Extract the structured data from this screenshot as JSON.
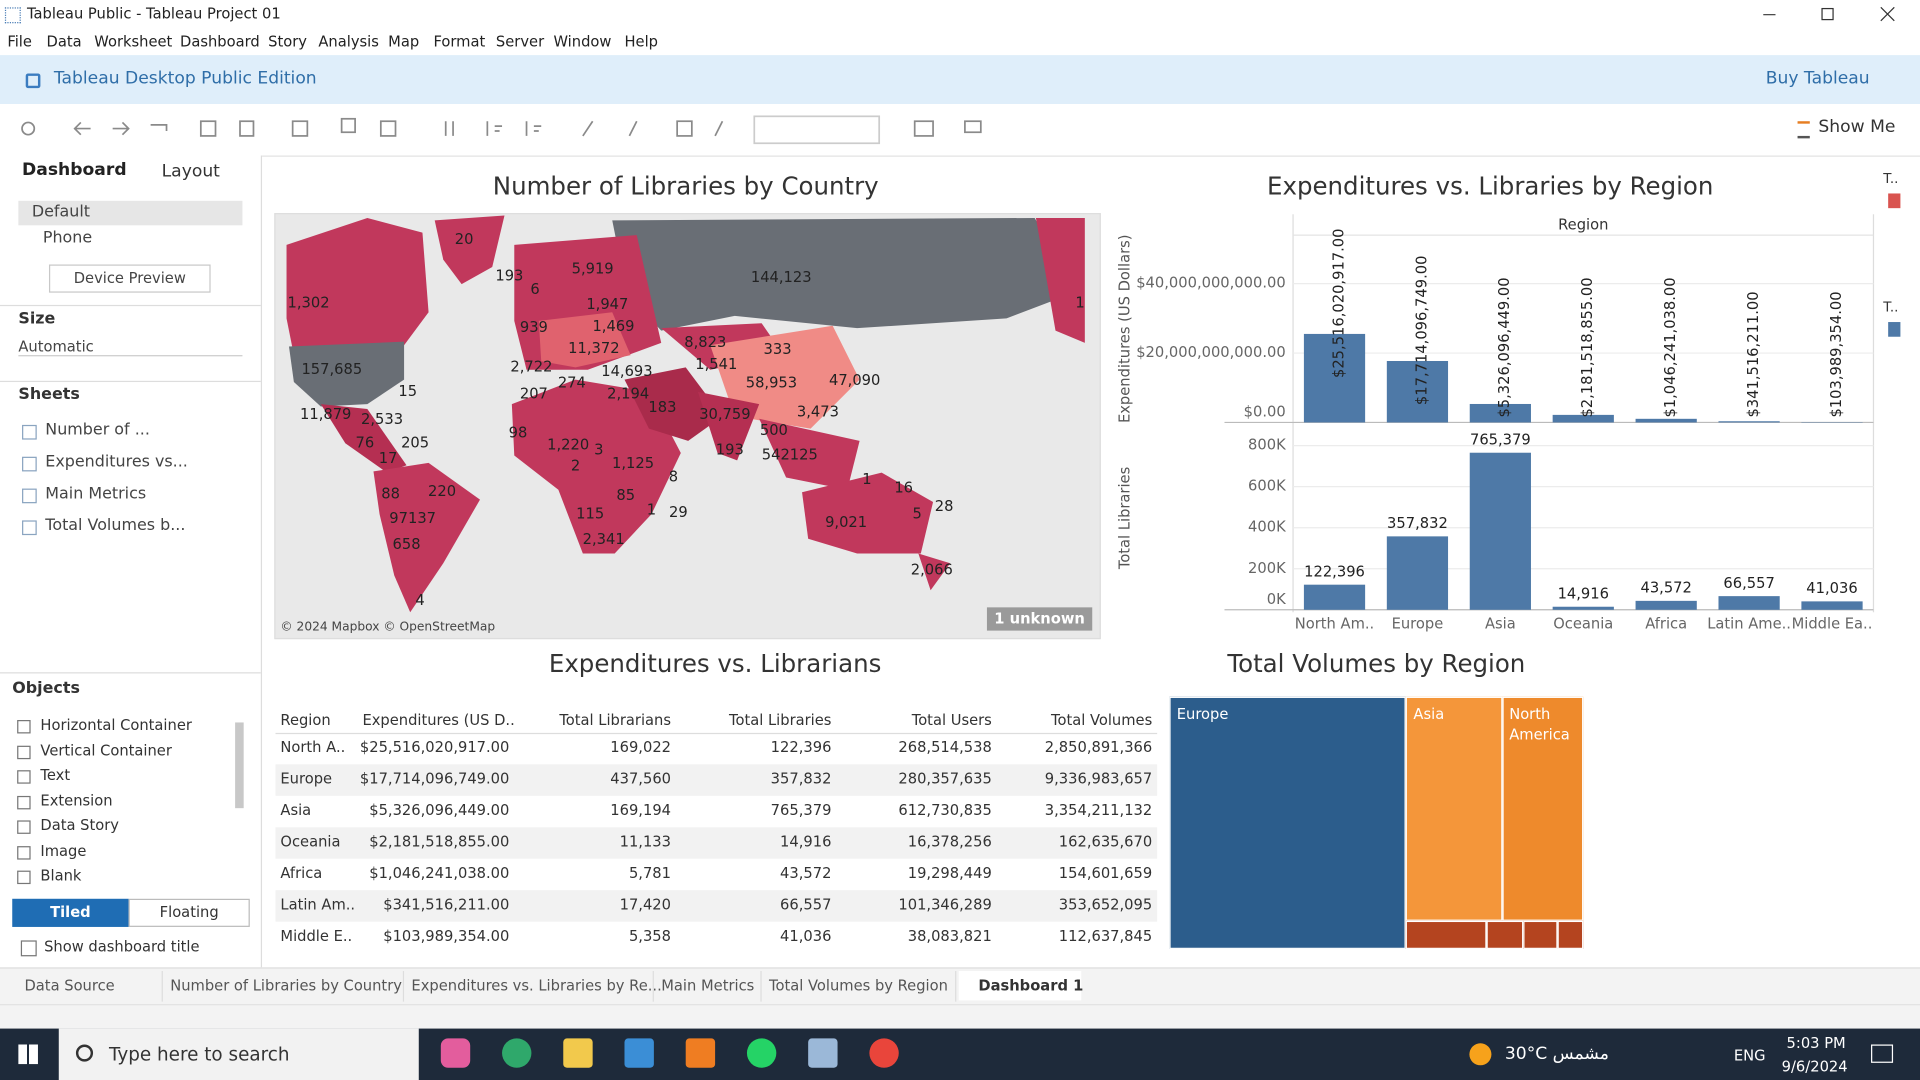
{
  "window": {
    "title": "Tableau Public - Tableau Project 01"
  },
  "menu": [
    "File",
    "Data",
    "Worksheet",
    "Dashboard",
    "Story",
    "Analysis",
    "Map",
    "Format",
    "Server",
    "Window",
    "Help"
  ],
  "banner": {
    "edition": "Tableau Desktop Public Edition",
    "buy": "Buy Tableau"
  },
  "toolbar": {
    "show_me": "Show Me"
  },
  "left_panel": {
    "tabs": [
      "Dashboard",
      "Layout"
    ],
    "devices": [
      "Default",
      "Phone"
    ],
    "device_preview": "Device Preview",
    "size_heading": "Size",
    "size_value": "Automatic",
    "sheets_heading": "Sheets",
    "sheets": [
      "Number of ...",
      "Expenditures vs...",
      "Main Metrics",
      "Total Volumes b..."
    ],
    "objects_heading": "Objects",
    "objects": [
      "Horizontal Container",
      "Vertical Container",
      "Text",
      "Extension",
      "Data Story",
      "Image",
      "Blank"
    ],
    "tiled": "Tiled",
    "floating": "Floating",
    "show_title": "Show dashboard title"
  },
  "map": {
    "title": "Number of Libraries by Country",
    "labels": [
      "20",
      "193",
      "6",
      "5,919",
      "144,123",
      "1,302",
      "1,947",
      "939",
      "1,469",
      "8,823",
      "333",
      "157,685",
      "2,722",
      "11,372",
      "14,693",
      "1,541",
      "58,953",
      "47,090",
      "15",
      "207",
      "274",
      "2,194",
      "183",
      "30,759",
      "3,473",
      "11,879",
      "2,533",
      "98",
      "500",
      "76",
      "205",
      "1,220",
      "3",
      "193",
      "542125",
      "17",
      "2",
      "1,125",
      "8",
      "1",
      "16",
      "88",
      "220",
      "85",
      "28",
      "97137",
      "115",
      "1",
      "29",
      "5",
      "9,021",
      "658",
      "2,341",
      "2,066",
      "4",
      "1"
    ],
    "attribution": "© 2024 Mapbox © OpenStreetMap",
    "unknown": "1 unknown"
  },
  "bar_chart": {
    "type": "bar",
    "title": "Expenditures vs. Libraries by Region",
    "column_header": "Region",
    "categories": [
      "North Am..",
      "Europe",
      "Asia",
      "Oceania",
      "Africa",
      "Latin Ame..",
      "Middle Ea.."
    ],
    "grid": true,
    "series": [
      {
        "name": "Expenditures (US Dollars)",
        "color": "#4e79a7",
        "values": [
          25516020917,
          17714096749,
          5326096449,
          2181518855,
          1046241038,
          341516211,
          103989354
        ],
        "value_labels": [
          "$25,516,020,917.00",
          "$17,714,096,749.00",
          "$5,326,096,449.00",
          "$2,181,518,855.00",
          "$1,046,241,038.00",
          "$341,516,211.00",
          "$103,989,354.00"
        ],
        "ylim": [
          0,
          54000000000
        ],
        "yticks": [
          {
            "value": 0,
            "label": "$0.00"
          },
          {
            "value": 20000000000,
            "label": "$20,000,000,000.00"
          },
          {
            "value": 40000000000,
            "label": "$40,000,000,000.00"
          }
        ]
      },
      {
        "name": "Total Libraries",
        "color": "#4e79a7",
        "values": [
          122396,
          357832,
          765379,
          14916,
          43572,
          66557,
          41036
        ],
        "value_labels": [
          "122,396",
          "357,832",
          "765,379",
          "14,916",
          "43,572",
          "66,557",
          "41,036"
        ],
        "ylim": [
          0,
          895000
        ],
        "yticks": [
          {
            "value": 0,
            "label": "0K"
          },
          {
            "value": 200000,
            "label": "200K"
          },
          {
            "value": 400000,
            "label": "400K"
          },
          {
            "value": 600000,
            "label": "600K"
          },
          {
            "value": 800000,
            "label": "800K"
          }
        ]
      }
    ]
  },
  "legend_stubs": [
    "T..",
    "T.."
  ],
  "table": {
    "title": "Expenditures vs. Librarians",
    "columns": [
      "Region",
      "Expenditures  (US D..",
      "Total Librarians",
      "Total Libraries",
      "Total Users",
      "Total Volumes"
    ],
    "rows": [
      [
        "North A..",
        "$25,516,020,917.00",
        "169,022",
        "122,396",
        "268,514,538",
        "2,850,891,366"
      ],
      [
        "Europe",
        "$17,714,096,749.00",
        "437,560",
        "357,832",
        "280,357,635",
        "9,336,983,657"
      ],
      [
        "Asia",
        "$5,326,096,449.00",
        "169,194",
        "765,379",
        "612,730,835",
        "3,354,211,132"
      ],
      [
        "Oceania",
        "$2,181,518,855.00",
        "11,133",
        "14,916",
        "16,378,256",
        "162,635,670"
      ],
      [
        "Africa",
        "$1,046,241,038.00",
        "5,781",
        "43,572",
        "19,298,449",
        "154,601,659"
      ],
      [
        "Latin Am..",
        "$341,516,211.00",
        "17,420",
        "66,557",
        "101,346,289",
        "353,652,095"
      ],
      [
        "Middle E..",
        "$103,989,354.00",
        "5,358",
        "41,036",
        "38,083,821",
        "112,637,845"
      ]
    ]
  },
  "treemap": {
    "type": "treemap",
    "title": "Total Volumes by Region",
    "categories": [
      "Europe",
      "Asia",
      "North America",
      null,
      null,
      null,
      null
    ],
    "values": [
      9336983657,
      3354211132,
      2850891366,
      353652095,
      162635670,
      154601659,
      112637845
    ],
    "colors": [
      "#2c5d8c",
      "#f4963a",
      "#ee8a2c",
      "#b4441f",
      "#b4441f",
      "#b4441f",
      "#b4441f"
    ]
  },
  "sheet_tabs": [
    "Data Source",
    "Number of Libraries by Country",
    "Expenditures vs. Libraries by Re...",
    "Main Metrics",
    "Total Volumes by Region",
    "Dashboard 1"
  ],
  "taskbar": {
    "search": "Type here to search",
    "temperature": "30°C",
    "weather": "مشمس",
    "language": "ENG",
    "time": "5:03 PM",
    "date": "9/6/2024"
  }
}
